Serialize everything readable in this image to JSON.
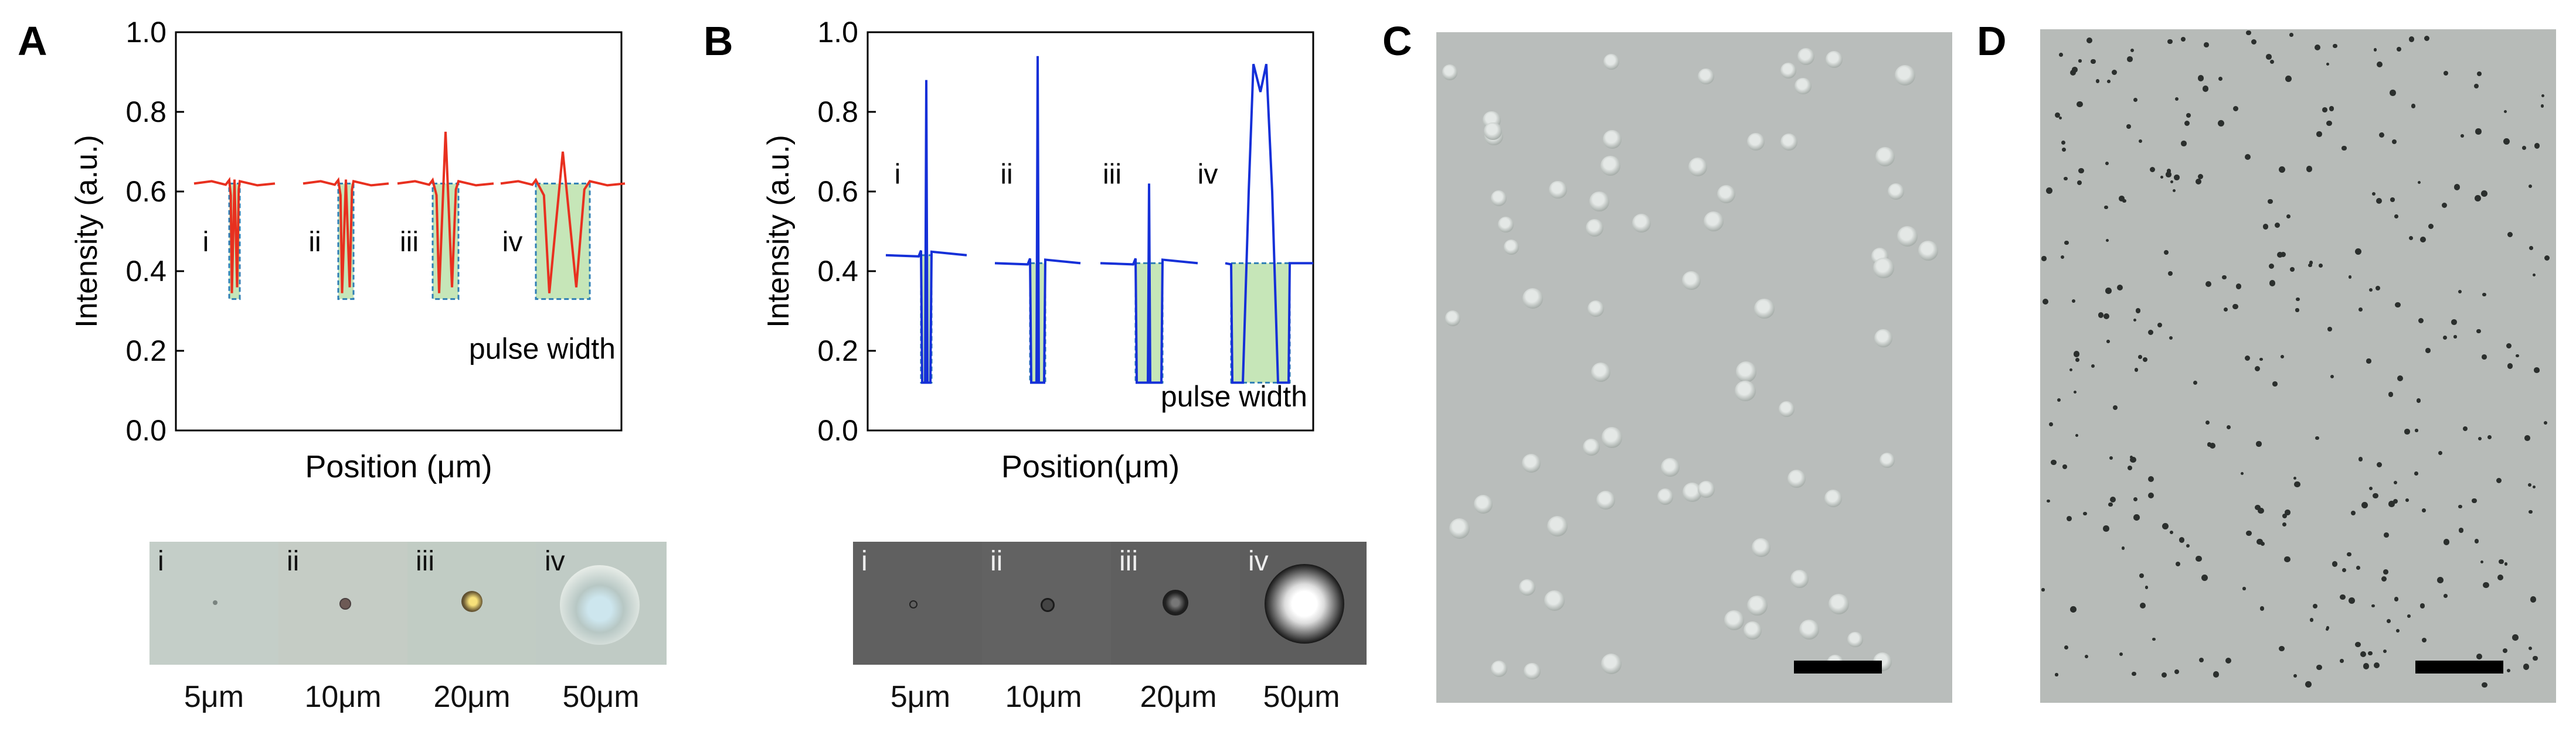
{
  "panels": {
    "A": {
      "letter": "A",
      "chart_data": {
        "type": "line",
        "xlabel": "Position (μm)",
        "ylabel": "Intensity (a.u.)",
        "ylim": [
          0.0,
          1.0
        ],
        "yticks": [
          "0.0",
          "0.2",
          "0.4",
          "0.6",
          "0.8",
          "1.0"
        ],
        "annotation": "pulse width",
        "series_color": "#e8301f",
        "fill_color": "#c6e6b8",
        "box_color": "#2f7fb5",
        "profiles": [
          {
            "label": "i",
            "baseline": 0.62,
            "dip": 0.33,
            "peak": 0.63
          },
          {
            "label": "ii",
            "baseline": 0.62,
            "dip": 0.33,
            "peak": 0.63
          },
          {
            "label": "iii",
            "baseline": 0.62,
            "dip": 0.33,
            "peak": 0.75
          },
          {
            "label": "iv",
            "baseline": 0.62,
            "dip": 0.33,
            "peak": 0.7
          }
        ]
      },
      "strip": {
        "labels": [
          "i",
          "ii",
          "iii",
          "iv"
        ],
        "sizes": [
          "5μm",
          "10μm",
          "20μm",
          "50μm"
        ]
      }
    },
    "B": {
      "letter": "B",
      "chart_data": {
        "type": "line",
        "xlabel": "Position(μm)",
        "ylabel": "Intensity (a.u.)",
        "ylim": [
          0.0,
          1.0
        ],
        "yticks": [
          "0.0",
          "0.2",
          "0.4",
          "0.6",
          "0.8",
          "1.0"
        ],
        "annotation": "pulse width",
        "series_color": "#1530d8",
        "fill_color": "#c6e6b8",
        "box_color": "#2f7fb5",
        "profiles": [
          {
            "label": "i",
            "baseline": 0.44,
            "dip": 0.12,
            "peak": 0.88
          },
          {
            "label": "ii",
            "baseline": 0.42,
            "dip": 0.12,
            "peak": 0.94
          },
          {
            "label": "iii",
            "baseline": 0.42,
            "dip": 0.12,
            "peak": 0.62
          },
          {
            "label": "iv",
            "baseline": 0.42,
            "dip": 0.12,
            "peak": 0.92
          }
        ]
      },
      "strip": {
        "labels": [
          "i",
          "ii",
          "iii",
          "iv"
        ],
        "sizes": [
          "5μm",
          "10μm",
          "20μm",
          "50μm"
        ]
      }
    },
    "C": {
      "letter": "C"
    },
    "D": {
      "letter": "D"
    }
  }
}
